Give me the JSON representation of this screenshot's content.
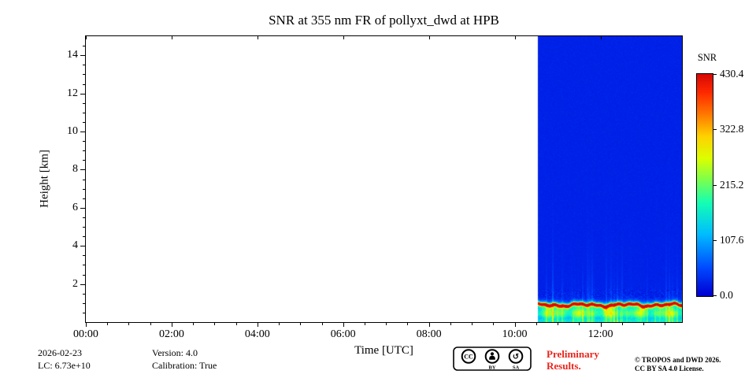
{
  "chart_data": {
    "type": "heatmap",
    "title": "SNR at 355 nm FR of pollyxt_dwd at HPB",
    "xlabel": "Time [UTC]",
    "ylabel": "Height [km]",
    "x_range_hours": [
      0,
      13.9
    ],
    "x_major_ticks": [
      {
        "hour": 0,
        "label": "00:00"
      },
      {
        "hour": 2,
        "label": "02:00"
      },
      {
        "hour": 4,
        "label": "04:00"
      },
      {
        "hour": 6,
        "label": "06:00"
      },
      {
        "hour": 8,
        "label": "08:00"
      },
      {
        "hour": 10,
        "label": "10:00"
      },
      {
        "hour": 12,
        "label": "12:00"
      }
    ],
    "x_minor_step_hours": 0.5,
    "y_range_km": [
      0,
      15
    ],
    "y_major_ticks": [
      {
        "km": 2,
        "label": "2"
      },
      {
        "km": 4,
        "label": "4"
      },
      {
        "km": 6,
        "label": "6"
      },
      {
        "km": 8,
        "label": "8"
      },
      {
        "km": 10,
        "label": "10"
      },
      {
        "km": 12,
        "label": "12"
      },
      {
        "km": 14,
        "label": "14"
      }
    ],
    "y_minor_step_km": 0.5,
    "grid": false,
    "colorbar": {
      "label": "SNR",
      "min": 0,
      "max": 430.4,
      "ticks": [
        {
          "value": 0,
          "label": "0.0"
        },
        {
          "value": 107.6,
          "label": "107.6"
        },
        {
          "value": 215.2,
          "label": "215.2"
        },
        {
          "value": 322.8,
          "label": "322.8"
        },
        {
          "value": 430.4,
          "label": "430.4"
        }
      ],
      "colormap": "jet",
      "colormap_stops": [
        [
          0.0,
          0,
          0,
          210
        ],
        [
          0.12,
          0,
          70,
          255
        ],
        [
          0.28,
          0,
          190,
          255
        ],
        [
          0.42,
          20,
          255,
          180
        ],
        [
          0.52,
          120,
          255,
          80
        ],
        [
          0.62,
          220,
          255,
          0
        ],
        [
          0.72,
          255,
          210,
          0
        ],
        [
          0.82,
          255,
          120,
          0
        ],
        [
          0.92,
          255,
          40,
          0
        ],
        [
          1.0,
          215,
          10,
          5
        ]
      ]
    },
    "measurement": {
      "start_hour": 10.55,
      "end_hour": 13.9,
      "background_snr": 25,
      "peak_height_km": 0.88,
      "peak_snr": 430,
      "band_center_km": 0.45,
      "band_snr": 185,
      "shoulder_snr": 130,
      "surface_snr": 85,
      "plume_max_snr": 95,
      "noise_snr": 14
    },
    "representative_profile": [
      {
        "km": 0.05,
        "snr": 175
      },
      {
        "km": 0.45,
        "snr": 210
      },
      {
        "km": 0.9,
        "snr": 430
      },
      {
        "km": 1.2,
        "snr": 90
      },
      {
        "km": 1.6,
        "snr": 35
      },
      {
        "km": 5.0,
        "snr": 25
      },
      {
        "km": 14.0,
        "snr": 25
      }
    ]
  },
  "footer": {
    "date": "2026-02-23",
    "lc": "LC: 6.73e+10",
    "version": "Version: 4.0",
    "calibration": "Calibration: True",
    "preliminary": [
      "Preliminary",
      "Results."
    ],
    "copyright": [
      "© TROPOS and DWD 2026.",
      "CC BY SA 4.0 License."
    ],
    "badge": {
      "cc": "CC",
      "by": "BY",
      "sa": "SA",
      "sa_glyph": "↺"
    }
  },
  "colors": {
    "preliminary_red": "#e8251c",
    "axis_black": "#000000",
    "plot_background": "#ffffff"
  }
}
